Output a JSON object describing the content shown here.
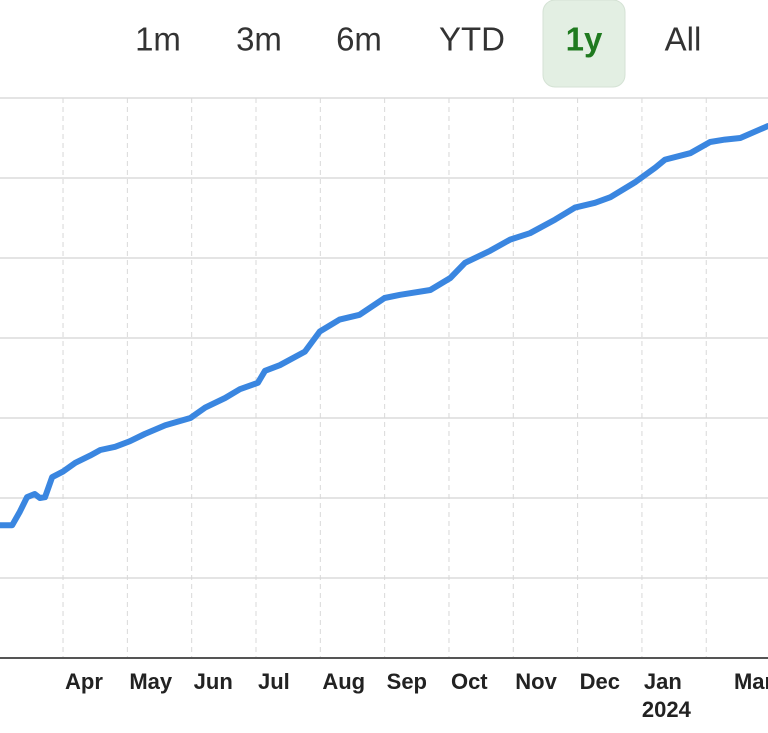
{
  "range_options": [
    "1m",
    "3m",
    "6m",
    "YTD",
    "1y",
    "All"
  ],
  "selected_range_index": 4,
  "chart_data": {
    "type": "line",
    "color": "#3a86e0",
    "x": [
      0.02,
      0.21,
      0.33,
      0.44,
      0.56,
      0.64,
      0.72,
      0.83,
      1.0,
      1.19,
      1.42,
      1.58,
      1.81,
      2.04,
      2.27,
      2.59,
      2.98,
      3.21,
      3.52,
      3.75,
      4.03,
      4.14,
      4.37,
      4.76,
      4.99,
      5.3,
      5.61,
      6.0,
      6.24,
      6.71,
      7.02,
      7.25,
      7.64,
      7.95,
      8.26,
      8.65,
      8.96,
      9.27,
      9.51,
      9.9,
      10.21,
      10.36,
      10.75,
      11.06,
      11.29,
      11.53,
      11.96
    ],
    "values": [
      1.66,
      1.66,
      1.83,
      2.01,
      2.05,
      2.0,
      2.01,
      2.26,
      2.33,
      2.44,
      2.53,
      2.6,
      2.64,
      2.71,
      2.8,
      2.91,
      3.0,
      3.13,
      3.25,
      3.36,
      3.44,
      3.59,
      3.66,
      3.83,
      4.08,
      4.23,
      4.29,
      4.5,
      4.54,
      4.6,
      4.75,
      4.94,
      5.09,
      5.23,
      5.31,
      5.48,
      5.63,
      5.69,
      5.76,
      5.95,
      6.13,
      6.23,
      6.31,
      6.45,
      6.48,
      6.5,
      6.65
    ],
    "xlim": [
      0.02,
      11.96
    ],
    "ylim": [
      0,
      7
    ],
    "xticks": [
      {
        "value": 1,
        "label": "Apr"
      },
      {
        "value": 2,
        "label": "May"
      },
      {
        "value": 3,
        "label": "Jun"
      },
      {
        "value": 4,
        "label": "Jul"
      },
      {
        "value": 5,
        "label": "Aug"
      },
      {
        "value": 6,
        "label": "Sep"
      },
      {
        "value": 7,
        "label": "Oct"
      },
      {
        "value": 8,
        "label": "Nov"
      },
      {
        "value": 9,
        "label": "Dec"
      },
      {
        "value": 10,
        "label": "Jan"
      },
      {
        "value": 11.4,
        "label": "Mar"
      }
    ],
    "x_grid": [
      1,
      2,
      3,
      4,
      5,
      6,
      7,
      8,
      9,
      10,
      11
    ],
    "year_labels": [
      {
        "value": 10,
        "label": "2024"
      }
    ],
    "y_grid": [
      1,
      2,
      3,
      4,
      5,
      6,
      7
    ]
  }
}
